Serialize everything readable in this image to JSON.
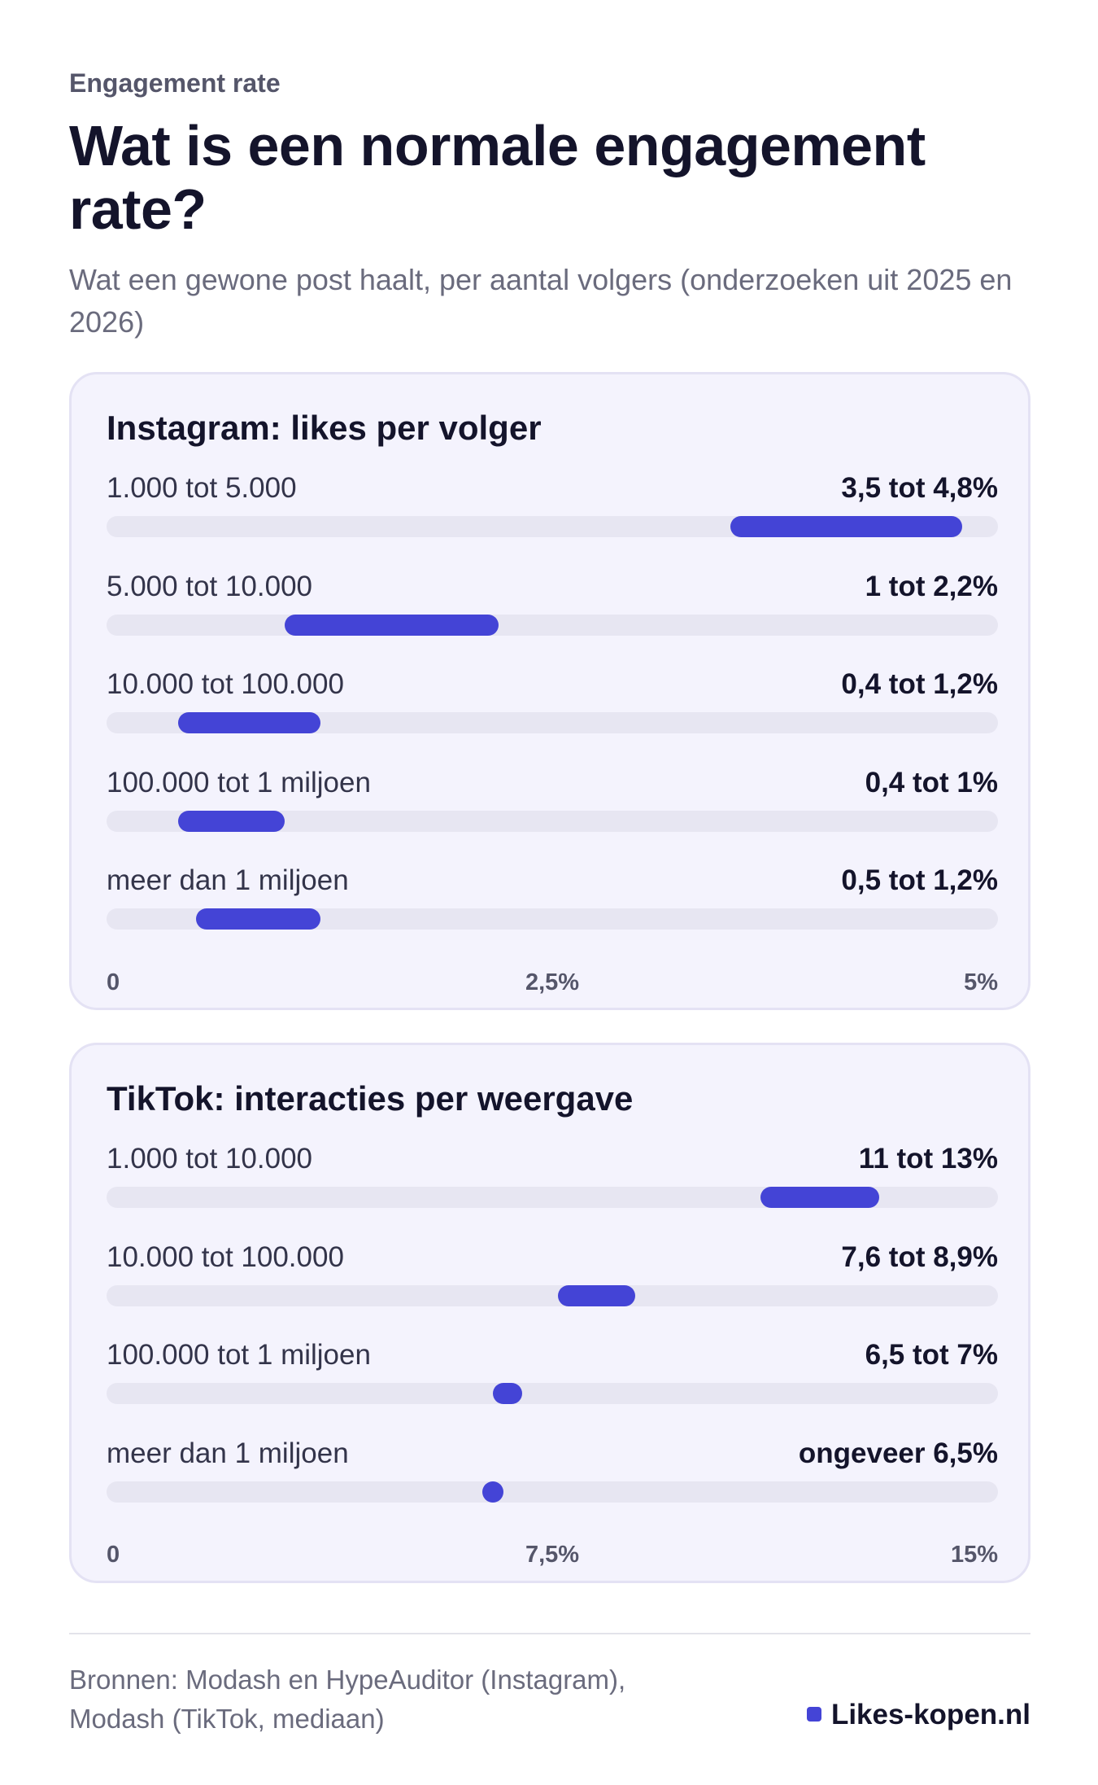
{
  "header": {
    "kicker": "Engagement rate",
    "title": "Wat is een normale engagement rate?",
    "subtitle": "Wat een gewone post haalt, per aantal volgers (onderzoeken uit 2025 en 2026)"
  },
  "chart_data": [
    {
      "type": "bar",
      "title": "Instagram: likes per volger",
      "xlim": [
        0,
        5
      ],
      "ticks": [
        "0",
        "2,5%",
        "5%"
      ],
      "tick_values": [
        0,
        2.5,
        5
      ],
      "categories": [
        "1.000 tot 5.000",
        "5.000 tot 10.000",
        "10.000 tot 100.000",
        "100.000 tot 1 miljoen",
        "meer dan 1 miljoen"
      ],
      "value_labels": [
        "3,5 tot 4,8%",
        "1 tot 2,2%",
        "0,4 tot 1,2%",
        "0,4 tot 1%",
        "0,5 tot 1,2%"
      ],
      "ranges": [
        [
          3.5,
          4.8
        ],
        [
          1,
          2.2
        ],
        [
          0.4,
          1.2
        ],
        [
          0.4,
          1.0
        ],
        [
          0.5,
          1.2
        ]
      ],
      "bar_color": "#4444d6",
      "track_color": "#e7e6f2"
    },
    {
      "type": "bar",
      "title": "TikTok: interacties per weergave",
      "xlim": [
        0,
        15
      ],
      "ticks": [
        "0",
        "7,5%",
        "15%"
      ],
      "tick_values": [
        0,
        7.5,
        15
      ],
      "categories": [
        "1.000 tot 10.000",
        "10.000 tot 100.000",
        "100.000 tot 1 miljoen",
        "meer dan 1 miljoen"
      ],
      "value_labels": [
        "11 tot 13%",
        "7,6 tot 8,9%",
        "6,5 tot 7%",
        "ongeveer 6,5%"
      ],
      "ranges": [
        [
          11,
          13
        ],
        [
          7.6,
          8.9
        ],
        [
          6.5,
          7
        ],
        [
          6.5,
          6.5
        ]
      ],
      "bar_color": "#4444d6",
      "track_color": "#e7e6f2"
    }
  ],
  "footer": {
    "sources_line1": "Bronnen: Modash en HypeAuditor (Instagram),",
    "sources_line2": "Modash (TikTok, mediaan)",
    "brand": "Likes-kopen.nl"
  }
}
